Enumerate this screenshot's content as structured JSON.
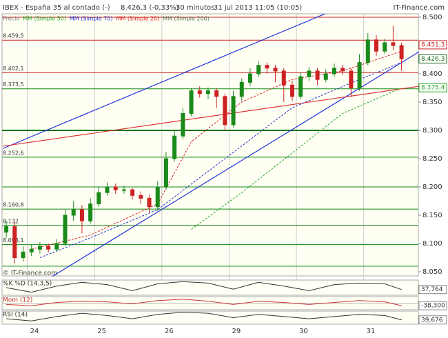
{
  "chart_data": {
    "type": "candlestick",
    "header": {
      "title": "IBEX - España 35 al contado (-)",
      "price": "8.426,3 (-0,33%)",
      "interval": "30 minutos",
      "date": "31 jul 2013 11:05 (10:05)",
      "source": "IT-Finance.com"
    },
    "footer": "© IT-Finance.com",
    "price_name": "Precio",
    "price_color": "#777777",
    "open": [
      8120,
      8130,
      8075,
      8085,
      8090,
      8095,
      8090,
      8100,
      8150,
      8160,
      8140,
      8170,
      8190,
      8200,
      8195,
      8195,
      8185,
      8180,
      8165,
      8200,
      8250,
      8290,
      8330,
      8370,
      8365,
      8370,
      8360,
      8310,
      8360,
      8385,
      8400,
      8415,
      8410,
      8405,
      8380,
      8360,
      8395,
      8405,
      8390,
      8400,
      8410,
      8405,
      8375,
      8420,
      8460,
      8440,
      8455,
      8450
    ],
    "high": [
      8140,
      8138,
      8095,
      8098,
      8102,
      8100,
      8108,
      8160,
      8175,
      8168,
      8180,
      8200,
      8208,
      8206,
      8202,
      8198,
      8192,
      8186,
      8210,
      8262,
      8300,
      8340,
      8375,
      8378,
      8376,
      8375,
      8365,
      8370,
      8392,
      8410,
      8422,
      8420,
      8416,
      8410,
      8388,
      8402,
      8412,
      8410,
      8408,
      8418,
      8416,
      8410,
      8435,
      8472,
      8468,
      8462,
      8485,
      8455
    ],
    "low": [
      8110,
      8065,
      8068,
      8078,
      8082,
      8084,
      8086,
      8095,
      8140,
      8118,
      8135,
      8165,
      8185,
      8188,
      8188,
      8178,
      8170,
      8155,
      8158,
      8195,
      8245,
      8285,
      8325,
      8358,
      8355,
      8340,
      8300,
      8305,
      8352,
      8378,
      8395,
      8400,
      8385,
      8350,
      8352,
      8355,
      8388,
      8380,
      8385,
      8395,
      8398,
      8360,
      8370,
      8415,
      8432,
      8435,
      8442,
      8405
    ],
    "close": [
      8130,
      8075,
      8085,
      8090,
      8095,
      8090,
      8100,
      8150,
      8160,
      8140,
      8170,
      8190,
      8200,
      8195,
      8195,
      8185,
      8180,
      8165,
      8200,
      8250,
      8290,
      8330,
      8370,
      8365,
      8370,
      8360,
      8310,
      8360,
      8385,
      8400,
      8415,
      8410,
      8405,
      8380,
      8360,
      8395,
      8405,
      8390,
      8400,
      8410,
      8405,
      8375,
      8420,
      8460,
      8440,
      8455,
      8450,
      8426.3
    ],
    "up_color": "#1a8a1a",
    "down_color": "#cc2222",
    "xlim": [
      -0.5,
      49
    ],
    "ylim": [
      8042.7,
      8506.1
    ],
    "xticks": [
      {
        "value": 2.5,
        "label": "24"
      },
      {
        "value": 10.5,
        "label": "25"
      },
      {
        "value": 18.5,
        "label": "26"
      },
      {
        "value": 26.5,
        "label": "29"
      },
      {
        "value": 34.5,
        "label": "30"
      },
      {
        "value": 42.5,
        "label": "31"
      }
    ],
    "yticks": [
      {
        "value": 8500,
        "label": "8.500"
      },
      {
        "value": 8450,
        "label": "8.450"
      },
      {
        "value": 8400,
        "label": "8.400"
      },
      {
        "value": 8350,
        "label": "8.350"
      },
      {
        "value": 8300,
        "label": "8.300"
      },
      {
        "value": 8250,
        "label": "8.250"
      },
      {
        "value": 8200,
        "label": "8.200"
      },
      {
        "value": 8150,
        "label": "8.150"
      },
      {
        "value": 8100,
        "label": "8.100"
      },
      {
        "value": 8050,
        "label": "8.050"
      }
    ],
    "series": [
      {
        "name": "MM (Simple 50)",
        "color": "#22aa22",
        "x": [
          22,
          28,
          34,
          40,
          47
        ],
        "values": [
          8125,
          8190,
          8260,
          8330,
          8375
        ]
      },
      {
        "name": "MM (Simple 70)",
        "color": "#2233cc",
        "x": [
          4,
          10,
          18,
          26,
          34,
          42,
          47
        ],
        "values": [
          8075,
          8110,
          8160,
          8250,
          8340,
          8390,
          8420
        ]
      },
      {
        "name": "MM (Simple 20)",
        "color": "#dd2222",
        "x": [
          3,
          10,
          18,
          22,
          28,
          34,
          40,
          47
        ],
        "values": [
          8090,
          8115,
          8170,
          8280,
          8350,
          8390,
          8405,
          8440
        ]
      },
      {
        "name": "MM (Simple 200)",
        "color": "#557755"
      }
    ],
    "levels": [
      {
        "value": 8500,
        "color": "#cc2222"
      },
      {
        "value": 8459.5,
        "label": "8.459,5",
        "color": "#cc2222"
      },
      {
        "value": 8402.1,
        "label": "8.402,1",
        "color": "#cc2222"
      },
      {
        "value": 8373.5,
        "label": "8.373,5",
        "color": "#118811"
      },
      {
        "value": 8300,
        "color": "#117711"
      },
      {
        "value": 8252.6,
        "label": "8.252,6",
        "color": "#118811"
      },
      {
        "value": 8200,
        "color": "#118811"
      },
      {
        "value": 8160.8,
        "label": "8.160,8",
        "color": "#118811"
      },
      {
        "value": 8132,
        "label": "8.132",
        "color": "#118811"
      },
      {
        "value": 8098.1,
        "label": "8.098,1",
        "color": "#118811"
      },
      {
        "value": 8060,
        "color": "#118811"
      }
    ],
    "trendlines": [
      {
        "color": "#2233dd",
        "x": [
          -0.4,
          37.9
        ],
        "values": [
          8268,
          8506
        ]
      },
      {
        "color": "#2233dd",
        "x": [
          5.5,
          49.1
        ],
        "values": [
          8042,
          8439
        ]
      },
      {
        "color": "#dd3333",
        "x": [
          -0.4,
          49.1
        ],
        "values": [
          8272,
          8378
        ]
      }
    ],
    "price_boxes": [
      {
        "value": 8451.3,
        "label": "8.451,3",
        "color": "#cc2222"
      },
      {
        "value": 8426.3,
        "label": "8.426,3",
        "color": "#1a6a1a"
      },
      {
        "value": 8375.4,
        "label": "8.375,4",
        "color": "#22aa22"
      }
    ],
    "indicators": [
      {
        "name": "%K %D (14,3,5)",
        "color": "#333333",
        "x": [
          0,
          3,
          6,
          9,
          12,
          15,
          18,
          21,
          24,
          27,
          30,
          33,
          36,
          39,
          42,
          45,
          47
        ],
        "values": [
          50,
          20,
          60,
          85,
          70,
          30,
          75,
          90,
          80,
          40,
          85,
          60,
          30,
          70,
          80,
          75,
          37.764
        ],
        "ylim": [
          0,
          100
        ],
        "last": {
          "value": 37.764,
          "label": "37,764"
        }
      },
      {
        "name": "Mom (12)",
        "color": "#cc3333",
        "x": [
          0,
          3,
          6,
          9,
          12,
          15,
          18,
          21,
          24,
          27,
          30,
          33,
          36,
          39,
          42,
          45,
          47
        ],
        "values": [
          -20,
          -40,
          10,
          30,
          20,
          -10,
          40,
          60,
          30,
          -20,
          30,
          10,
          -20,
          10,
          40,
          20,
          -38.3
        ],
        "ylim": [
          -100,
          100
        ],
        "last": {
          "value": -38.3,
          "label": "-38,300"
        }
      },
      {
        "name": "RSI (14)",
        "color": "#333333",
        "x": [
          0,
          3,
          6,
          9,
          12,
          15,
          18,
          21,
          24,
          27,
          30,
          33,
          36,
          39,
          42,
          45,
          47
        ],
        "values": [
          45,
          35,
          55,
          70,
          60,
          45,
          65,
          75,
          70,
          50,
          65,
          55,
          45,
          55,
          65,
          60,
          39.676
        ],
        "ylim": [
          20,
          80
        ],
        "last": {
          "value": 39.676,
          "label": "39,676"
        }
      }
    ]
  }
}
